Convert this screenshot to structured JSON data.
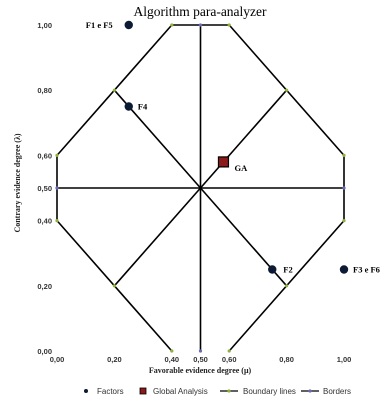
{
  "chart_data": {
    "type": "scatter",
    "title": "Algorithm para-analyzer",
    "xlabel": "Favorable evidence degree (μ)",
    "ylabel": "Contrary evidence degree (λ)",
    "xlim": [
      0,
      1
    ],
    "ylim": [
      0,
      1
    ],
    "x_ticks": [
      {
        "value": 0.0,
        "label": "0,00"
      },
      {
        "value": 0.2,
        "label": "0,20"
      },
      {
        "value": 0.4,
        "label": "0,40"
      },
      {
        "value": 0.5,
        "label": "0,50"
      },
      {
        "value": 0.6,
        "label": "0,60"
      },
      {
        "value": 0.8,
        "label": "0,80"
      },
      {
        "value": 1.0,
        "label": "1,00"
      }
    ],
    "y_ticks": [
      {
        "value": 0.0,
        "label": "0,00"
      },
      {
        "value": 0.2,
        "label": "0,20"
      },
      {
        "value": 0.4,
        "label": "0,40"
      },
      {
        "value": 0.5,
        "label": "0,50"
      },
      {
        "value": 0.6,
        "label": "0,60"
      },
      {
        "value": 0.8,
        "label": "0,80"
      },
      {
        "value": 1.0,
        "label": "1,00"
      }
    ],
    "grid": false,
    "legend_position": "bottom",
    "series": [
      {
        "name": "Factors",
        "color": "#0d1a33",
        "marker": "circle",
        "points": [
          {
            "label": "F1 e F5",
            "x": 0.25,
            "y": 1.0
          },
          {
            "label": "F4",
            "x": 0.25,
            "y": 0.75
          },
          {
            "label": "F2",
            "x": 0.75,
            "y": 0.25
          },
          {
            "label": "F3 e F6",
            "x": 1.0,
            "y": 0.25
          }
        ]
      },
      {
        "name": "Global Analysis",
        "color": "#8b1a1a",
        "marker": "square",
        "points": [
          {
            "label": "GA",
            "x": 0.58,
            "y": 0.58
          }
        ]
      },
      {
        "name": "Boundary lines",
        "color": "#000000",
        "marker_color": "#8db33a",
        "segments": [
          [
            [
              0.4,
              1.0
            ],
            [
              0.6,
              1.0
            ]
          ],
          [
            [
              0.6,
              1.0
            ],
            [
              1.0,
              0.6
            ]
          ],
          [
            [
              1.0,
              0.4
            ],
            [
              0.6,
              0.0
            ]
          ],
          [
            [
              0.4,
              0.0
            ],
            [
              0.0,
              0.4
            ]
          ],
          [
            [
              0.0,
              0.6
            ],
            [
              0.4,
              1.0
            ]
          ],
          [
            [
              0.2,
              0.8
            ],
            [
              0.5,
              0.5
            ]
          ],
          [
            [
              0.8,
              0.8
            ],
            [
              0.5,
              0.5
            ]
          ],
          [
            [
              0.2,
              0.2
            ],
            [
              0.5,
              0.5
            ]
          ],
          [
            [
              0.8,
              0.2
            ],
            [
              0.5,
              0.5
            ]
          ]
        ]
      },
      {
        "name": "Borders",
        "color": "#000000",
        "marker_color": "#6b6bb3",
        "segments": [
          [
            [
              0.0,
              0.4
            ],
            [
              0.0,
              0.6
            ]
          ],
          [
            [
              1.0,
              0.4
            ],
            [
              1.0,
              0.6
            ]
          ],
          [
            [
              0.0,
              0.5
            ],
            [
              1.0,
              0.5
            ]
          ],
          [
            [
              0.5,
              0.0
            ],
            [
              0.5,
              1.0
            ]
          ]
        ]
      }
    ],
    "border_vertices": [
      [
        0.4,
        1.0
      ],
      [
        0.5,
        1.0
      ],
      [
        0.6,
        1.0
      ],
      [
        0.2,
        0.8
      ],
      [
        0.8,
        0.8
      ],
      [
        0.0,
        0.6
      ],
      [
        1.0,
        0.6
      ],
      [
        0.0,
        0.5
      ],
      [
        1.0,
        0.5
      ],
      [
        0.0,
        0.4
      ],
      [
        1.0,
        0.4
      ],
      [
        0.2,
        0.2
      ],
      [
        0.8,
        0.2
      ],
      [
        0.4,
        0.0
      ],
      [
        0.5,
        0.0
      ],
      [
        0.6,
        0.0
      ]
    ]
  }
}
